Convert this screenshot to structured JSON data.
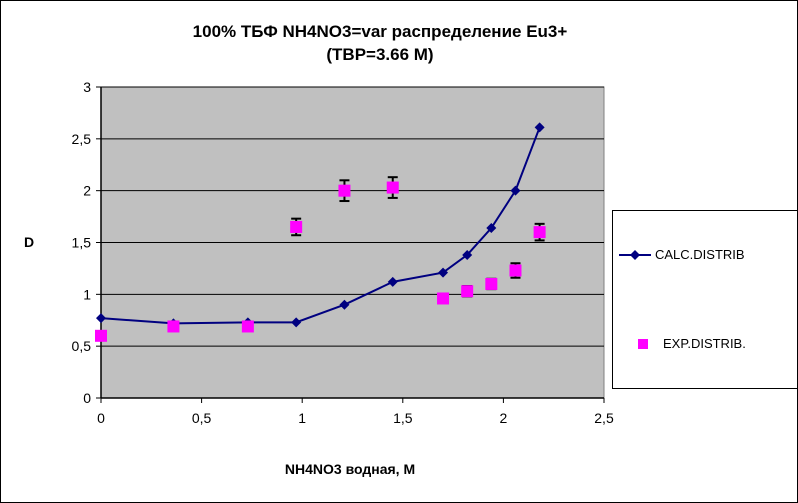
{
  "chart_data": {
    "type": "line",
    "title": "100%  ТБФ  NH4NO3=var распределение Eu3+",
    "subtitle": "(TBP=3.66 M)",
    "xlabel": "NH4NO3  водная, М",
    "ylabel": "D",
    "xlim": [
      0,
      2.5
    ],
    "ylim": [
      0,
      3
    ],
    "x_ticks": [
      "0",
      "0,5",
      "1",
      "1,5",
      "2",
      "2,5"
    ],
    "y_ticks": [
      "0",
      "0,5",
      "1",
      "1,5",
      "2",
      "2,5",
      "3"
    ],
    "grid": "horizontal",
    "legend_position": "right",
    "series": [
      {
        "name": "CALC.DISTRIB",
        "style": "line+diamond",
        "color": "#000080",
        "x": [
          0,
          0.36,
          0.73,
          0.97,
          1.21,
          1.45,
          1.7,
          1.82,
          1.94,
          2.06,
          2.18
        ],
        "y": [
          0.77,
          0.72,
          0.73,
          0.73,
          0.9,
          1.12,
          1.21,
          1.38,
          1.64,
          2.0,
          2.61
        ]
      },
      {
        "name": "EXP.DISTRIB.",
        "style": "square",
        "color": "#FF00FF",
        "x": [
          0,
          0.36,
          0.73,
          0.97,
          1.21,
          1.45,
          1.7,
          1.82,
          1.94,
          2.06,
          2.18
        ],
        "y": [
          0.6,
          0.69,
          0.69,
          1.65,
          2.0,
          2.03,
          0.96,
          1.03,
          1.1,
          1.23,
          1.6
        ],
        "error": [
          0,
          0,
          0,
          0.08,
          0.1,
          0.1,
          0,
          0.05,
          0.05,
          0.07,
          0.08
        ]
      }
    ]
  }
}
